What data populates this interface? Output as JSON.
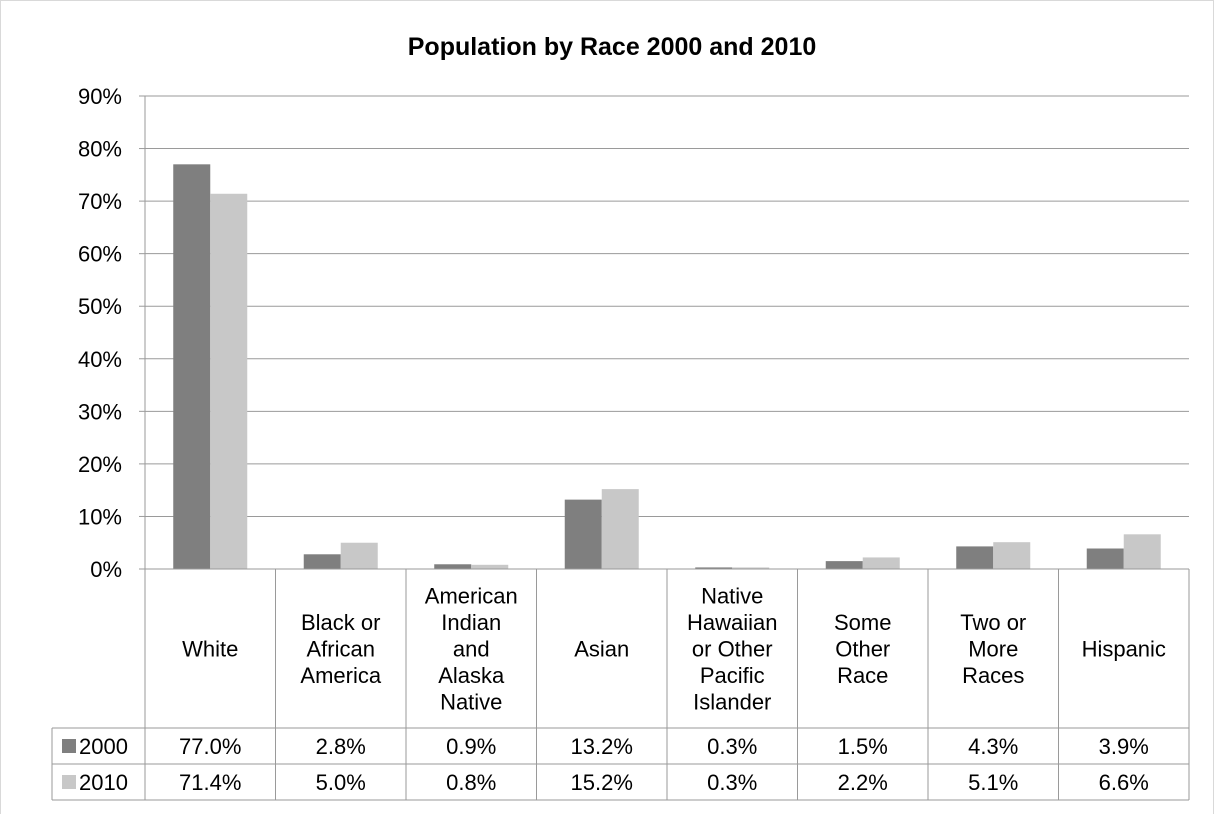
{
  "chart_data": {
    "type": "bar",
    "title": "Population by Race 2000 and 2010",
    "ylim": [
      0,
      90
    ],
    "yticks": [
      "0%",
      "10%",
      "20%",
      "30%",
      "40%",
      "50%",
      "60%",
      "70%",
      "80%",
      "90%"
    ],
    "grid": true,
    "legend": "data-table-left",
    "categories": [
      "White",
      "Black or African America",
      "American Indian and Alaska Native",
      "Asian",
      "Native Hawaiian or Other Pacific Islander",
      "Some Other Race",
      "Two or More Races",
      "Hispanic"
    ],
    "category_lines": [
      [
        "White"
      ],
      [
        "Black or",
        "African",
        "America"
      ],
      [
        "American",
        "Indian",
        "and",
        "Alaska",
        "Native"
      ],
      [
        "Asian"
      ],
      [
        "Native",
        "Hawaiian",
        "or Other",
        "Pacific",
        "Islander"
      ],
      [
        "Some",
        "Other",
        "Race"
      ],
      [
        "Two or",
        "More",
        "Races"
      ],
      [
        "Hispanic"
      ]
    ],
    "series": [
      {
        "name": "2000",
        "color": "#7f7f7f",
        "values": [
          77.0,
          2.8,
          0.9,
          13.2,
          0.3,
          1.5,
          4.3,
          3.9
        ],
        "labels": [
          "77.0%",
          "2.8%",
          "0.9%",
          "13.2%",
          "0.3%",
          "1.5%",
          "4.3%",
          "3.9%"
        ]
      },
      {
        "name": "2010",
        "color": "#c8c8c8",
        "values": [
          71.4,
          5.0,
          0.8,
          15.2,
          0.3,
          2.2,
          5.1,
          6.6
        ],
        "labels": [
          "71.4%",
          "5.0%",
          "0.8%",
          "15.2%",
          "0.3%",
          "2.2%",
          "5.1%",
          "6.6%"
        ]
      }
    ]
  }
}
